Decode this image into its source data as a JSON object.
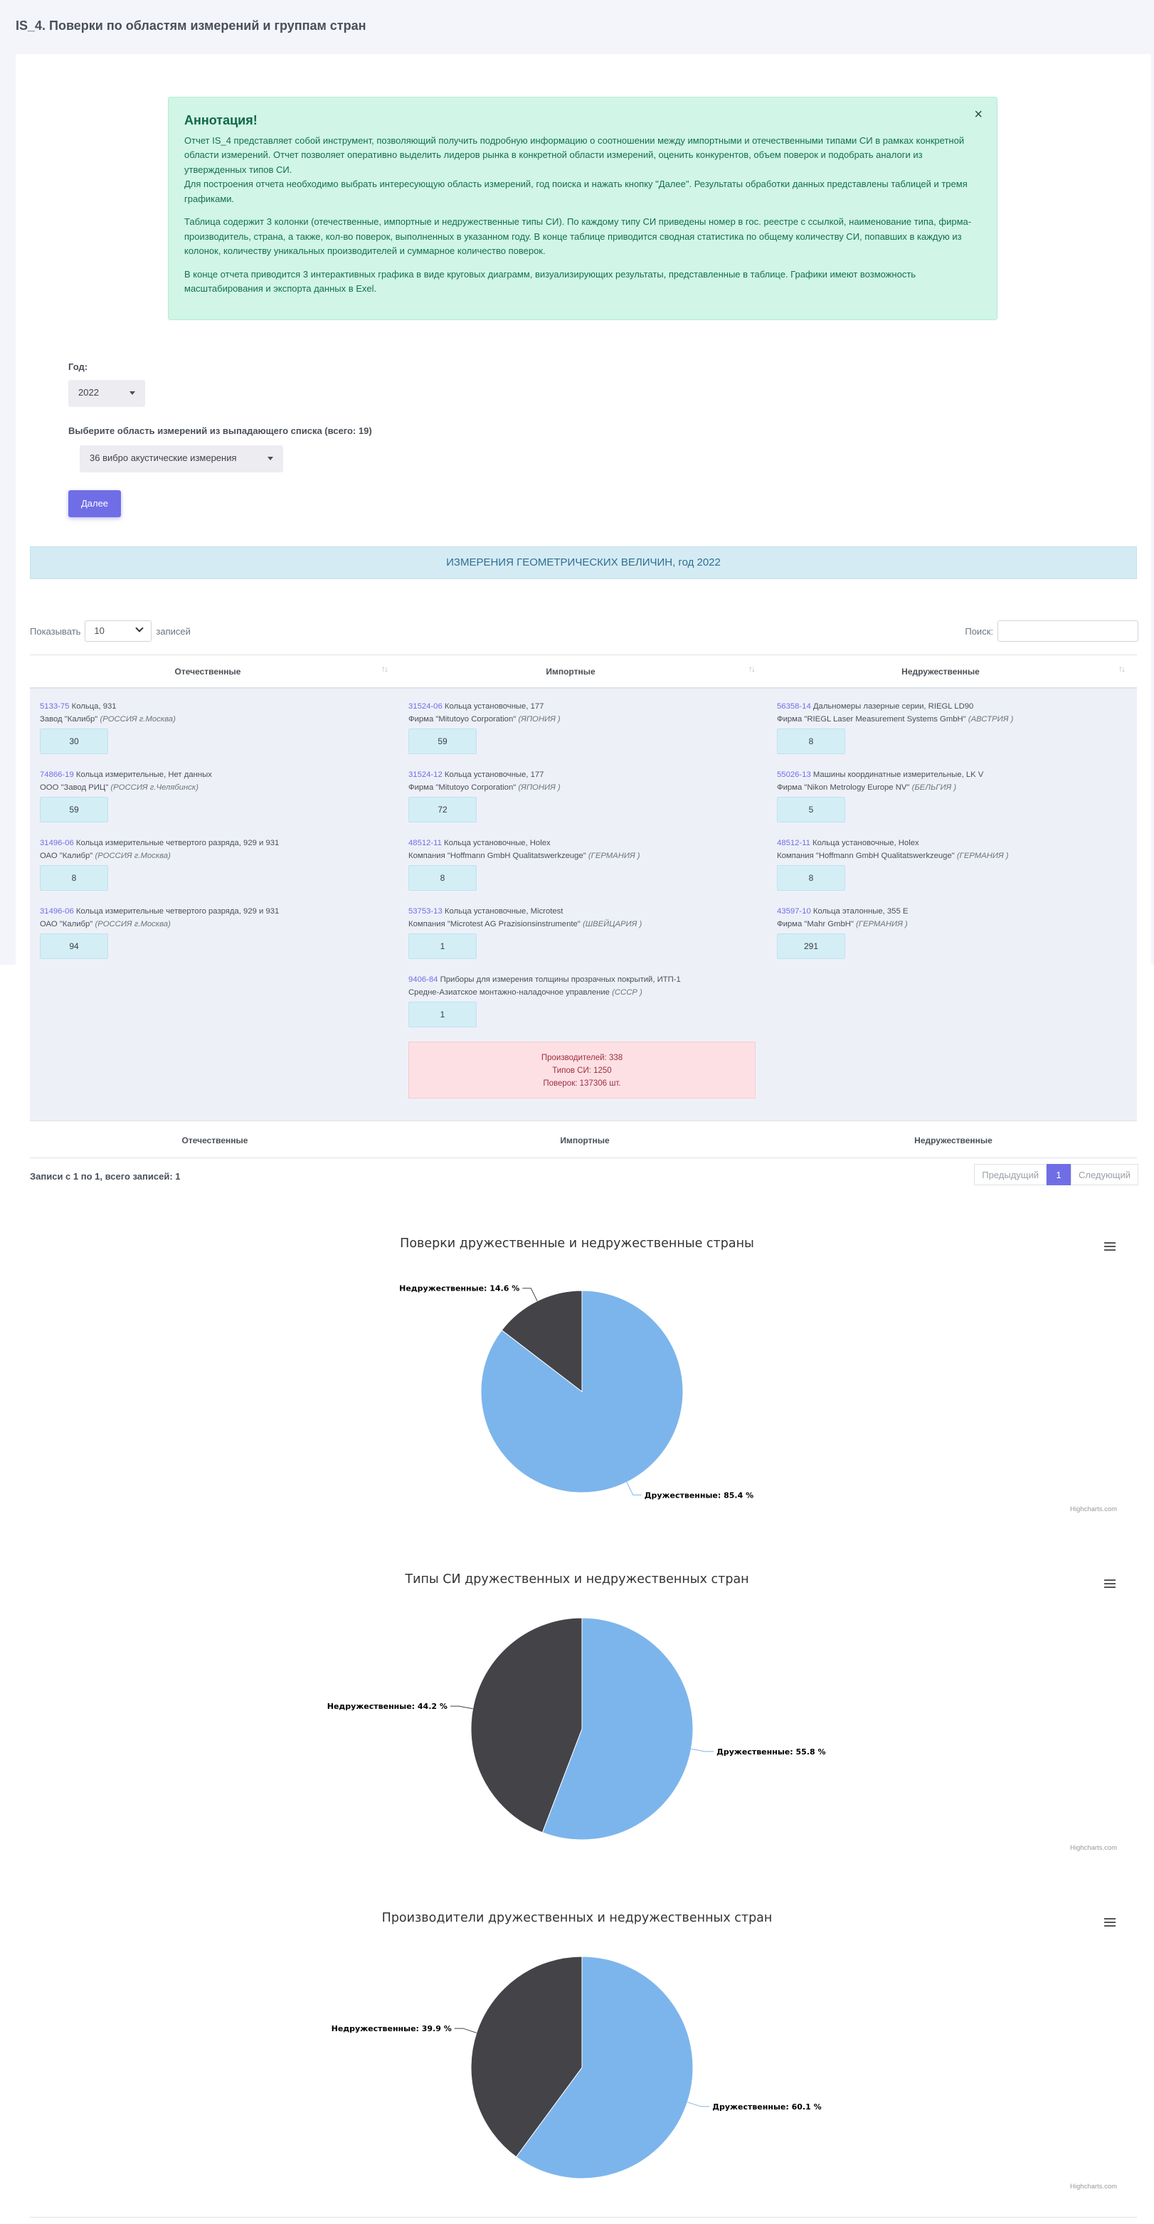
{
  "page": {
    "title": "IS_4. Поверки по областям измерений и группам стран"
  },
  "annotation": {
    "heading": "Аннотация!",
    "close": "×",
    "p1": "Отчет IS_4 представляет собой инструмент, позволяющий получить подробную информацию о соотношении между импортными и отечественными типами СИ в рамках конкретной области измерений. Отчет позволяет оперативно выделить лидеров рынка в конкретной области измерений, оценить конкурентов, объем поверок и подобрать аналоги из утвержденных типов СИ.",
    "p1b": "Для построения отчета необходимо выбрать интересующую область измерений, год поиска и нажать кнопку \"Далее\". Результаты обработки данных представлены таблицей и тремя графиками.",
    "p2": "Таблица содержит 3 колонки (отечественные, импортные и недружественные типы СИ). По каждому типу СИ приведены номер в гос. реестре с ссылкой, наименование типа, фирма-производитель, страна, а также, кол-во поверок, выполненных в указанном году. В конце таблице приводится сводная статистика по общему количеству СИ, попавших в каждую из колонок, количеству уникальных производителей и суммарное количество поверок.",
    "p3": "В конце отчета приводится 3 интерактивных графика в виде круговых диаграмм, визуализирующих результаты, представленные в таблице. Графики имеют возможность масштабирования и экспорта данных в Exel."
  },
  "form": {
    "year_label": "Год:",
    "year_value": "2022",
    "area_label": "Выберите область измерений из выпадающего списка (всего: 19)",
    "area_value": "36 вибро акустические измерения",
    "next_button": "Далее"
  },
  "banner": "ИЗМЕРЕНИЯ ГЕОМЕТРИЧЕСКИХ ВЕЛИЧИН, год 2022",
  "table": {
    "show_prefix": "Показывать",
    "show_value": "10",
    "show_suffix": "записей",
    "search_label": "Поиск:",
    "columns": [
      "Отечественные",
      "Импортные",
      "Недружественные"
    ],
    "domestic": [
      {
        "reg": "5133-75",
        "name": "Кольца, 931",
        "maker": "Завод \"Калибр\"",
        "country": "(РОССИЯ г.Москва)",
        "count": "30"
      },
      {
        "reg": "74866-19",
        "name": "Кольца измерительные, Нет данных",
        "maker": "ООО \"Завод РИЦ\"",
        "country": "(РОССИЯ г.Челябинск)",
        "count": "59"
      },
      {
        "reg": "31496-06",
        "name": "Кольца измерительные четвертого разряда, 929 и 931",
        "maker": "ОАО \"Калибр\"",
        "country": "(РОССИЯ г.Москва)",
        "count": "8"
      },
      {
        "reg": "31496-06",
        "name": "Кольца измерительные четвертого разряда, 929 и 931",
        "maker": "ОАО \"Калибр\"",
        "country": "(РОССИЯ г.Москва)",
        "count": "94"
      }
    ],
    "imported": [
      {
        "reg": "31524-06",
        "name": "Кольца установочные, 177",
        "maker": "Фирма \"Mitutoyo Corporation\"",
        "country": "(ЯПОНИЯ )",
        "count": "59"
      },
      {
        "reg": "31524-12",
        "name": "Кольца установочные, 177",
        "maker": "Фирма \"Mitutoyo Corporation\"",
        "country": "(ЯПОНИЯ )",
        "count": "72"
      },
      {
        "reg": "48512-11",
        "name": "Кольца установочные, Holex",
        "maker": "Компания \"Hoffmann GmbH Qualitatswerkzeuge\"",
        "country": "(ГЕРМАНИЯ )",
        "count": "8"
      },
      {
        "reg": "53753-13",
        "name": "Кольца установочные, Microtest",
        "maker": "Компания \"Microtest AG Prazisionsinstrumente\"",
        "country": "(ШВЕЙЦАРИЯ )",
        "count": "1"
      },
      {
        "reg": "9406-84",
        "name": "Приборы для измерения толщины прозрачных покрытий, ИТП-1",
        "maker": "Средне-Азиатское монтажно-наладочное управление",
        "country": "(СССР )",
        "count": "1"
      }
    ],
    "unfriendly": [
      {
        "reg": "56358-14",
        "name": "Дальномеры лазерные серии, RIEGL LD90",
        "maker": "Фирма \"RIEGL Laser Measurement Systems GmbH\"",
        "country": "(АВСТРИЯ )",
        "count": "8"
      },
      {
        "reg": "55026-13",
        "name": "Машины координатные измерительные, LK V",
        "maker": "Фирма \"Nikon Metrology Europe NV\"",
        "country": "(БЕЛЬГИЯ )",
        "count": "5"
      },
      {
        "reg": "48512-11",
        "name": "Кольца установочные, Holex",
        "maker": "Компания \"Hoffmann GmbH Qualitatswerkzeuge\"",
        "country": "(ГЕРМАНИЯ )",
        "count": "8"
      },
      {
        "reg": "43597-10",
        "name": "Кольца эталонные, 355 E",
        "maker": "Фирма \"Mahr GmbH\"",
        "country": "(ГЕРМАНИЯ )",
        "count": "291"
      }
    ],
    "summary": {
      "makers": "Производителей: 338",
      "types": "Типов СИ: 1250",
      "checks": "Поверок: 137306 шт."
    },
    "info": "Записи с 1 по 1, всего записей: 1",
    "prev": "Предыдущий",
    "page": "1",
    "next": "Следующий"
  },
  "charts": {
    "credits": "Highcharts.com",
    "colors": {
      "friendly": "#7cb5ec",
      "unfriendly": "#434348"
    }
  },
  "chart_data": [
    {
      "type": "pie",
      "title": "Поверки дружественные и недружественные страны",
      "slices": [
        {
          "name": "Дружественные",
          "value": 85.4,
          "label": "Дружественные: 85.4 %"
        },
        {
          "name": "Недружественные",
          "value": 14.6,
          "label": "Недружественные: 14.6 %"
        }
      ]
    },
    {
      "type": "pie",
      "title": "Типы СИ дружественных и недружественных стран",
      "slices": [
        {
          "name": "Дружественные",
          "value": 55.8,
          "label": "Дружественные: 55.8 %"
        },
        {
          "name": "Недружественные",
          "value": 44.2,
          "label": "Недружественные: 44.2 %"
        }
      ]
    },
    {
      "type": "pie",
      "title": "Производители дружественных и недружественных стран",
      "slices": [
        {
          "name": "Дружественные",
          "value": 60.1,
          "label": "Дружественные: 60.1 %"
        },
        {
          "name": "Недружественные",
          "value": 39.9,
          "label": "Недружественные: 39.9 %"
        }
      ]
    }
  ]
}
